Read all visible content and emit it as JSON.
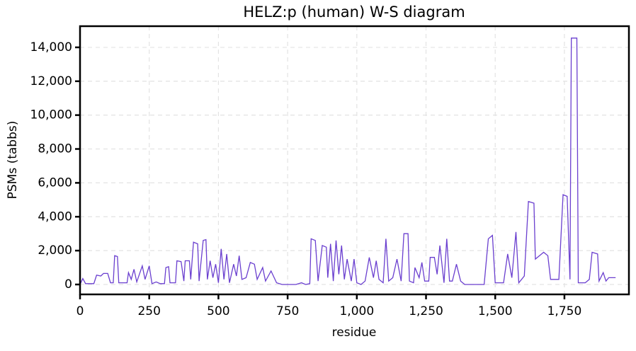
{
  "chart_data": {
    "type": "line",
    "title": "HELZ:p (human) W-S diagram",
    "xlabel": "residue",
    "ylabel": "PSMs (tabbs)",
    "color": "#6a3fcf",
    "grid": true,
    "xlim": [
      0,
      1983
    ],
    "ylim": [
      -585,
      15250
    ],
    "xticks": [
      0,
      250,
      500,
      750,
      {
        "value": 1000,
        "label": "1,000"
      },
      {
        "value": 1250,
        "label": "1,250"
      },
      {
        "value": 1500,
        "label": "1,500"
      },
      {
        "value": 1750,
        "label": "1,750"
      }
    ],
    "yticks": [
      0,
      {
        "value": 2000,
        "label": "2,000"
      },
      {
        "value": 4000,
        "label": "4,000"
      },
      {
        "value": 6000,
        "label": "6,000"
      },
      {
        "value": 8000,
        "label": "8,000"
      },
      {
        "value": 10000,
        "label": "10,000"
      },
      {
        "value": 12000,
        "label": "12,000"
      },
      {
        "value": 14000,
        "label": "14,000"
      }
    ],
    "x": [
      0,
      10,
      20,
      50,
      60,
      75,
      85,
      100,
      110,
      120,
      125,
      135,
      140,
      170,
      175,
      185,
      195,
      205,
      225,
      235,
      250,
      260,
      275,
      290,
      305,
      310,
      320,
      325,
      345,
      350,
      365,
      375,
      380,
      395,
      400,
      410,
      425,
      430,
      445,
      455,
      460,
      470,
      480,
      490,
      500,
      510,
      520,
      530,
      540,
      555,
      565,
      575,
      585,
      600,
      615,
      630,
      640,
      660,
      670,
      690,
      710,
      730,
      780,
      800,
      815,
      830,
      835,
      850,
      860,
      875,
      890,
      895,
      905,
      915,
      925,
      935,
      945,
      955,
      965,
      980,
      990,
      1000,
      1015,
      1030,
      1045,
      1060,
      1070,
      1080,
      1095,
      1105,
      1115,
      1130,
      1145,
      1160,
      1170,
      1185,
      1190,
      1205,
      1210,
      1225,
      1235,
      1245,
      1260,
      1265,
      1280,
      1290,
      1300,
      1315,
      1325,
      1335,
      1345,
      1360,
      1375,
      1390,
      1460,
      1475,
      1490,
      1500,
      1530,
      1545,
      1560,
      1575,
      1585,
      1605,
      1620,
      1640,
      1645,
      1660,
      1675,
      1690,
      1700,
      1730,
      1745,
      1760,
      1770,
      1775,
      1795,
      1800,
      1825,
      1840,
      1850,
      1870,
      1875,
      1890,
      1900,
      1910,
      1935
    ],
    "values": [
      0,
      350,
      50,
      50,
      550,
      500,
      650,
      650,
      100,
      100,
      1700,
      1650,
      100,
      100,
      700,
      300,
      900,
      150,
      1100,
      300,
      1100,
      50,
      150,
      50,
      50,
      1000,
      1050,
      100,
      100,
      1400,
      1350,
      200,
      1400,
      1400,
      300,
      2500,
      2400,
      200,
      2600,
      2650,
      300,
      1400,
      400,
      1200,
      100,
      2100,
      300,
      1800,
      100,
      1200,
      500,
      1700,
      300,
      400,
      1300,
      1200,
      300,
      1000,
      200,
      800,
      100,
      0,
      0,
      100,
      0,
      50,
      2700,
      2600,
      200,
      2300,
      2200,
      400,
      2400,
      200,
      2600,
      600,
      2300,
      300,
      1500,
      200,
      1500,
      100,
      0,
      200,
      1600,
      400,
      1400,
      300,
      100,
      2700,
      200,
      400,
      1500,
      200,
      3000,
      3000,
      200,
      100,
      1000,
      400,
      1300,
      200,
      200,
      1600,
      1600,
      600,
      2300,
      100,
      2700,
      200,
      200,
      1200,
      200,
      0,
      0,
      2700,
      2900,
      100,
      100,
      1800,
      400,
      3100,
      100,
      500,
      4900,
      4800,
      1500,
      1700,
      1900,
      1700,
      300,
      300,
      5300,
      5200,
      300,
      14550,
      14550,
      100,
      100,
      300,
      1900,
      1800,
      200,
      700,
      200,
      400,
      400
    ]
  }
}
